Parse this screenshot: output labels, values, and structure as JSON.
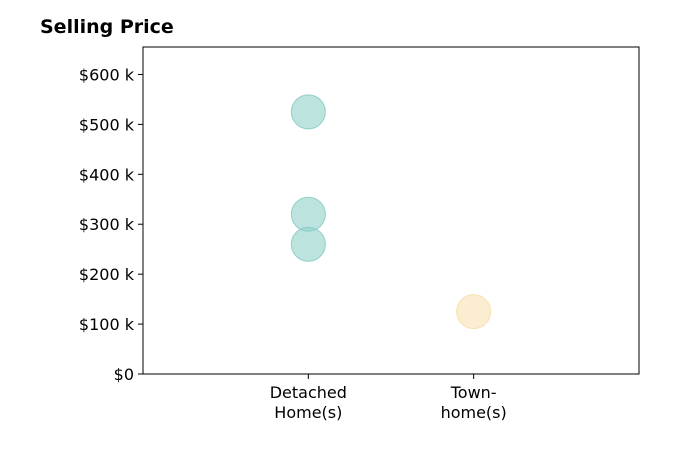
{
  "chart_data": {
    "type": "scatter",
    "title": "Selling Price",
    "xlabel": "",
    "ylabel": "",
    "categories": [
      [
        "Detached",
        "Home(s)"
      ],
      [
        "Town-",
        "home(s)"
      ]
    ],
    "yticks": [
      {
        "value": 0,
        "label": "$0"
      },
      {
        "value": 100,
        "label": "$100 k"
      },
      {
        "value": 200,
        "label": "$200 k"
      },
      {
        "value": 300,
        "label": "$300 k"
      },
      {
        "value": 400,
        "label": "$400 k"
      },
      {
        "value": 500,
        "label": "$500 k"
      },
      {
        "value": 600,
        "label": "$600 k"
      }
    ],
    "ylim": [
      0,
      655
    ],
    "xlim": [
      -1,
      2
    ],
    "grid": false,
    "series": [
      {
        "color": "#8fd0c8",
        "points": [
          {
            "x": 0,
            "y": 525
          },
          {
            "x": 0,
            "y": 320
          },
          {
            "x": 0,
            "y": 260
          }
        ]
      },
      {
        "color": "#f6e1b0",
        "points": [
          {
            "x": 1,
            "y": 125
          }
        ]
      }
    ]
  }
}
